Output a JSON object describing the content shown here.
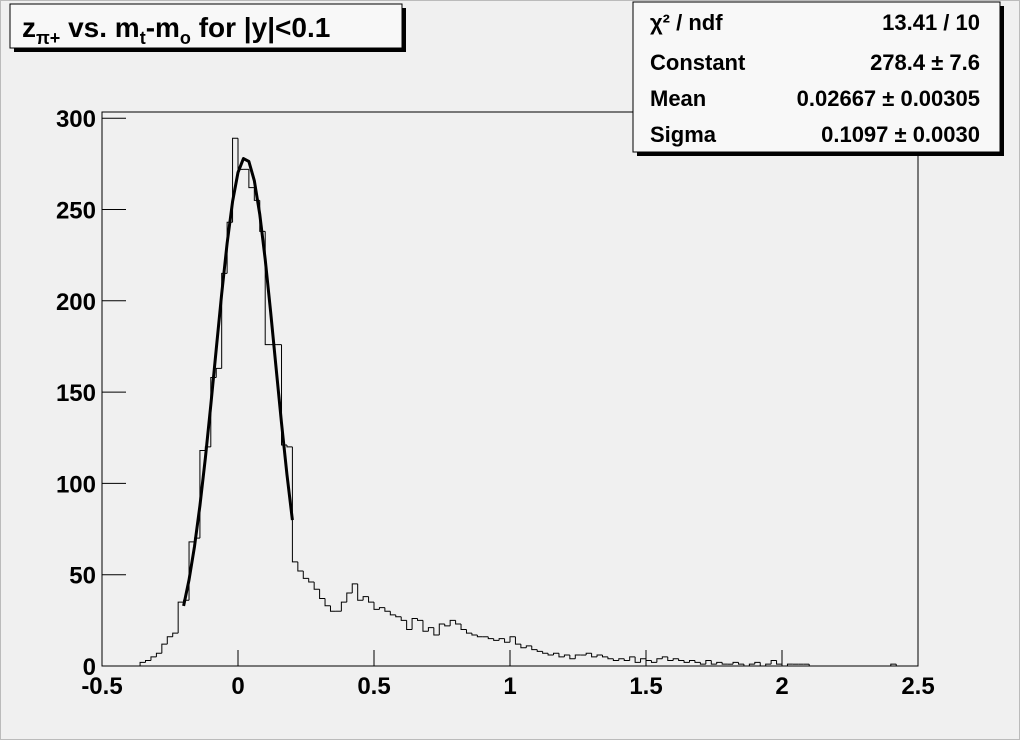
{
  "chart_data": {
    "type": "histogram",
    "title": [
      {
        "text": "z"
      },
      {
        "text": "π+",
        "sub": true
      },
      {
        "text": " vs. m"
      },
      {
        "text": "t",
        "sub": true
      },
      {
        "text": "-m"
      },
      {
        "text": "o",
        "sub": true
      },
      {
        "text": " for |y|<0.1"
      }
    ],
    "color": "#000000",
    "xlim": [
      -0.5,
      2.5
    ],
    "ylim": [
      0,
      303.4
    ],
    "xticks": [
      -0.5,
      0,
      0.5,
      1,
      1.5,
      2,
      2.5
    ],
    "yticks": [
      0,
      50,
      100,
      150,
      200,
      250,
      300
    ],
    "bins": [
      -0.5,
      -0.48,
      -0.46,
      -0.44,
      -0.42,
      -0.4,
      -0.38,
      -0.36,
      -0.34,
      -0.32,
      -0.3,
      -0.28,
      -0.26,
      -0.24,
      -0.22,
      -0.2,
      -0.18,
      -0.16,
      -0.14,
      -0.12,
      -0.1,
      -0.08,
      -0.06,
      -0.04,
      -0.02,
      0,
      0.02,
      0.04,
      0.06,
      0.08,
      0.1,
      0.12,
      0.14,
      0.16,
      0.18,
      0.2,
      0.22,
      0.24,
      0.26,
      0.28,
      0.3,
      0.32,
      0.34,
      0.36,
      0.38,
      0.4,
      0.42,
      0.44,
      0.46,
      0.48,
      0.5,
      0.52,
      0.54,
      0.56,
      0.58,
      0.6,
      0.62,
      0.64,
      0.66,
      0.68,
      0.7,
      0.72,
      0.74,
      0.76,
      0.78,
      0.8,
      0.82,
      0.84,
      0.86,
      0.88,
      0.9,
      0.92,
      0.94,
      0.96,
      0.98,
      1,
      1.02,
      1.04,
      1.06,
      1.08,
      1.1,
      1.12,
      1.14,
      1.16,
      1.18,
      1.2,
      1.22,
      1.24,
      1.26,
      1.28,
      1.3,
      1.32,
      1.34,
      1.36,
      1.38,
      1.4,
      1.42,
      1.44,
      1.46,
      1.48,
      1.5,
      1.52,
      1.54,
      1.56,
      1.58,
      1.6,
      1.62,
      1.64,
      1.66,
      1.68,
      1.7,
      1.72,
      1.74,
      1.76,
      1.78,
      1.8,
      1.82,
      1.84,
      1.86,
      1.88,
      1.9,
      1.92,
      1.94,
      1.96,
      1.98,
      2,
      2.02,
      2.04,
      2.06,
      2.08,
      2.1,
      2.12,
      2.14,
      2.16,
      2.18,
      2.2,
      2.22,
      2.24,
      2.26,
      2.28,
      2.3,
      2.32,
      2.34,
      2.36,
      2.38,
      2.4,
      2.42,
      2.44,
      2.46,
      2.48,
      2.5
    ],
    "values": [
      0,
      0,
      0,
      0,
      0,
      0,
      0,
      2,
      3,
      5,
      7,
      12,
      16,
      18,
      35,
      36,
      68,
      70,
      118,
      120,
      158,
      163,
      215,
      243,
      289,
      272,
      272,
      262,
      255,
      238,
      176,
      176,
      176,
      121,
      120,
      57,
      52,
      48,
      46,
      42,
      37,
      33,
      30,
      30,
      35,
      40,
      45,
      36,
      38,
      35,
      31,
      32,
      30,
      28,
      27,
      25,
      20,
      26,
      25,
      19,
      21,
      17,
      23,
      22,
      25,
      23,
      20,
      18,
      17,
      16,
      16,
      15,
      14,
      15,
      13,
      16,
      12,
      10,
      11,
      9,
      8,
      7,
      6,
      7,
      5,
      6,
      4,
      6,
      6,
      7,
      5,
      6,
      5,
      4,
      3,
      4,
      3,
      5,
      2,
      4,
      3,
      2,
      4,
      5,
      3,
      4,
      3,
      2,
      3,
      2,
      1,
      3,
      1,
      2,
      1,
      1,
      2,
      1,
      0,
      1,
      2,
      0,
      1,
      3,
      1,
      0,
      1,
      1,
      1,
      1,
      0,
      0,
      0,
      0,
      0,
      0,
      0,
      0,
      0,
      0,
      0,
      0,
      0,
      0,
      0,
      1,
      0,
      0,
      0,
      0
    ],
    "fit": {
      "color": "#000000",
      "x": [
        -0.2,
        -0.18,
        -0.16,
        -0.14,
        -0.12,
        -0.1,
        -0.08,
        -0.06,
        -0.04,
        -0.02,
        0,
        0.02,
        0.04,
        0.06,
        0.08,
        0.1,
        0.12,
        0.14,
        0.16,
        0.18,
        0.2
      ],
      "values": [
        32.9,
        47.2,
        65.4,
        87.8,
        113.9,
        142.9,
        173.5,
        203.8,
        231.5,
        254.3,
        270.3,
        277.9,
        276.3,
        265.8,
        247.4,
        222.7,
        193.9,
        163.3,
        133.0,
        104.8,
        79.9
      ]
    },
    "stats": [
      {
        "label": "χ² / ndf",
        "value": "13.41 / 10"
      },
      {
        "label": "Constant",
        "value": "278.4 ± 7.6"
      },
      {
        "label": "Mean",
        "value": "0.02667 ± 0.00305"
      },
      {
        "label": "Sigma",
        "value": "0.1097 ± 0.0030"
      }
    ]
  }
}
